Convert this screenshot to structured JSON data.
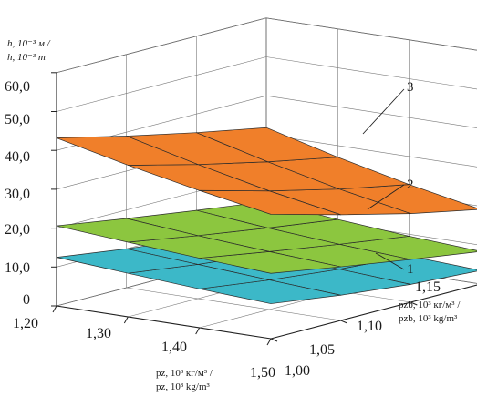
{
  "chart_data": {
    "type": "surface3d",
    "title": "",
    "zlabel": [
      "h, 10⁻³ м /",
      "h, 10⁻³ m"
    ],
    "xlabel": [
      "pz, 10³ кг/м³ /",
      "pz, 10³ kg/m³"
    ],
    "ylabel": [
      "pzb, 10³ кг/м³ /",
      "pzb, 10³ kg/m³"
    ],
    "x_ticks": [
      "1,20",
      "1,30",
      "1,40",
      "1,50"
    ],
    "y_ticks": [
      "1,00",
      "1,05",
      "1,10",
      "1,15"
    ],
    "z_ticks": [
      "0",
      "10,0",
      "20,0",
      "30,0",
      "40,0",
      "50,0",
      "60,0"
    ],
    "xlim": [
      1.2,
      1.5
    ],
    "ylim": [
      1.0,
      1.15
    ],
    "zlim": [
      0,
      60
    ],
    "grid": true,
    "x": [
      1.2,
      1.3,
      1.4,
      1.5
    ],
    "y": [
      1.0,
      1.05,
      1.1,
      1.15
    ],
    "series": [
      {
        "name": "1",
        "color": "#3cb8c8",
        "z": [
          [
            12.5,
            10.0,
            8.0,
            6.5
          ],
          [
            11.2,
            8.8,
            6.9,
            5.4
          ],
          [
            10.0,
            7.6,
            5.7,
            4.4
          ],
          [
            9.0,
            6.5,
            4.6,
            3.5
          ]
        ]
      },
      {
        "name": "2",
        "color": "#8cc63f",
        "z": [
          [
            20.6,
            17.8,
            15.2,
            12.8
          ],
          [
            19.2,
            16.2,
            13.5,
            11.0
          ],
          [
            17.9,
            14.9,
            12.1,
            9.5
          ],
          [
            16.8,
            13.8,
            11.0,
            8.4
          ]
        ]
      },
      {
        "name": "3",
        "color": "#f07f2a",
        "z": [
          [
            43.2,
            39.0,
            35.2,
            31.8
          ],
          [
            39.0,
            34.5,
            30.5,
            27.0
          ],
          [
            35.3,
            30.5,
            26.3,
            22.8
          ],
          [
            32.0,
            27.2,
            22.8,
            19.2
          ]
        ]
      }
    ]
  }
}
